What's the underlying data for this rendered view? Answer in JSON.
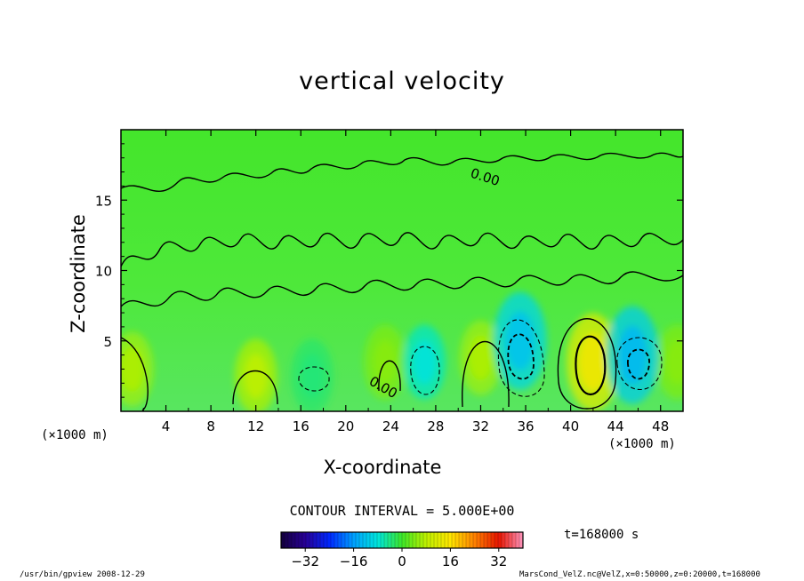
{
  "chart_data": {
    "type": "heatmap",
    "title": "vertical velocity",
    "xlabel": "X-coordinate",
    "ylabel": "Z-coordinate",
    "x_unit_left": "(×1000 m)",
    "x_unit_right": "(×1000 m)",
    "xlim": [
      0,
      50
    ],
    "ylim": [
      0,
      20
    ],
    "x_ticks": [
      "4",
      "8",
      "12",
      "16",
      "20",
      "24",
      "28",
      "32",
      "36",
      "40",
      "44",
      "48"
    ],
    "y_ticks": [
      "5",
      "10",
      "15"
    ],
    "contour_labels": [
      "0.00",
      "0.00"
    ],
    "contour_interval": "CONTOUR INTERVAL = 5.000E+00",
    "colorbar": {
      "min": -40,
      "max": 40,
      "ticks": [
        "−32",
        "−16",
        "0",
        "16",
        "32"
      ]
    },
    "time_label": "t=168000 s",
    "features": [
      {
        "x": 42.0,
        "z": 3.5,
        "value": 12,
        "sign": "positive"
      },
      {
        "x": 32.0,
        "z": 3.8,
        "value": 6,
        "sign": "positive"
      },
      {
        "x": 12.0,
        "z": 2.5,
        "value": 7,
        "sign": "positive"
      },
      {
        "x": 1.0,
        "z": 3.0,
        "value": 6,
        "sign": "positive"
      },
      {
        "x": 23.5,
        "z": 3.5,
        "value": 4,
        "sign": "positive"
      },
      {
        "x": 49.5,
        "z": 3.5,
        "value": 4,
        "sign": "positive"
      },
      {
        "x": 35.5,
        "z": 5.0,
        "value": -10,
        "sign": "negative"
      },
      {
        "x": 45.5,
        "z": 4.0,
        "value": -11,
        "sign": "negative"
      },
      {
        "x": 27.0,
        "z": 3.5,
        "value": -7,
        "sign": "negative"
      },
      {
        "x": 17.0,
        "z": 2.5,
        "value": -3,
        "sign": "negative"
      }
    ]
  },
  "footer": {
    "left": "/usr/bin/gpview  2008-12-29",
    "right": "MarsCond_VelZ.nc@VelZ,x=0:50000,z=0:20000,t=168000"
  }
}
